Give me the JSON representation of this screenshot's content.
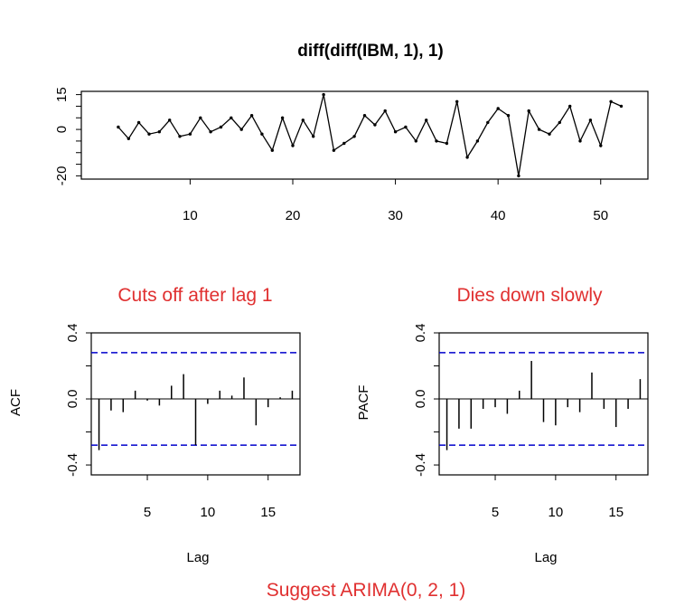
{
  "chart_data": [
    {
      "type": "line",
      "title": "diff(diff(IBM, 1), 1)",
      "x": [
        3,
        4,
        5,
        6,
        7,
        8,
        9,
        10,
        11,
        12,
        13,
        14,
        15,
        16,
        17,
        18,
        19,
        20,
        21,
        22,
        23,
        24,
        25,
        26,
        27,
        28,
        29,
        30,
        31,
        32,
        33,
        34,
        35,
        36,
        37,
        38,
        39,
        40,
        41,
        42,
        43,
        44,
        45,
        46,
        47,
        48,
        49,
        50,
        51,
        52
      ],
      "values": [
        1,
        -4,
        3,
        -2,
        -1,
        4,
        -3,
        -2,
        5,
        -1,
        1,
        5,
        0,
        6,
        -2,
        -9,
        5,
        -7,
        4,
        -3,
        15,
        -9,
        -6,
        -3,
        6,
        2,
        8,
        -1,
        1,
        -5,
        4,
        -5,
        -6,
        12,
        -12,
        -5,
        3,
        9,
        6,
        -20,
        8,
        0,
        -2,
        3,
        10,
        -5,
        4,
        -7,
        12,
        10
      ],
      "xticks": [
        10,
        20,
        30,
        40,
        50
      ],
      "yticks": [
        15,
        0,
        -20
      ],
      "xlim": [
        -0.6,
        54.6
      ],
      "ylim": [
        -21.4,
        16.4
      ],
      "xlabel": "",
      "ylabel": ""
    },
    {
      "type": "bar",
      "title": "Cuts off after lag 1",
      "lags": [
        1,
        2,
        3,
        4,
        5,
        6,
        7,
        8,
        9,
        10,
        11,
        12,
        13,
        14,
        15,
        16,
        17
      ],
      "values": [
        -0.31,
        -0.07,
        -0.08,
        0.05,
        -0.01,
        -0.04,
        0.08,
        0.15,
        -0.28,
        -0.03,
        0.05,
        0.02,
        0.13,
        -0.16,
        -0.05,
        0.01,
        0.05
      ],
      "confidence_bound": 0.28,
      "xticks": [
        5,
        10,
        15
      ],
      "yticks": [
        "0.4",
        "0.0",
        "-0.4"
      ],
      "xlim": [
        0.36,
        17.64
      ],
      "ylim": [
        -0.46,
        0.4
      ],
      "xlabel": "Lag",
      "ylabel": "ACF"
    },
    {
      "type": "bar",
      "title": "Dies down slowly",
      "lags": [
        1,
        2,
        3,
        4,
        5,
        6,
        7,
        8,
        9,
        10,
        11,
        12,
        13,
        14,
        15,
        16,
        17
      ],
      "values": [
        -0.31,
        -0.18,
        -0.18,
        -0.06,
        -0.05,
        -0.09,
        0.05,
        0.23,
        -0.14,
        -0.16,
        -0.05,
        -0.08,
        0.16,
        -0.06,
        -0.17,
        -0.06,
        0.12
      ],
      "confidence_bound": 0.28,
      "xticks": [
        5,
        10,
        15
      ],
      "yticks": [
        "0.4",
        "0.0",
        "-0.4"
      ],
      "xlim": [
        0.36,
        17.64
      ],
      "ylim": [
        -0.46,
        0.4
      ],
      "xlabel": "Lag",
      "ylabel": "PACF"
    }
  ],
  "footer_note": "Suggest ARIMA(0, 2, 1)",
  "colors": {
    "line": "#000000",
    "confidence_band": "#0000cc",
    "annotation": "#e03030"
  }
}
